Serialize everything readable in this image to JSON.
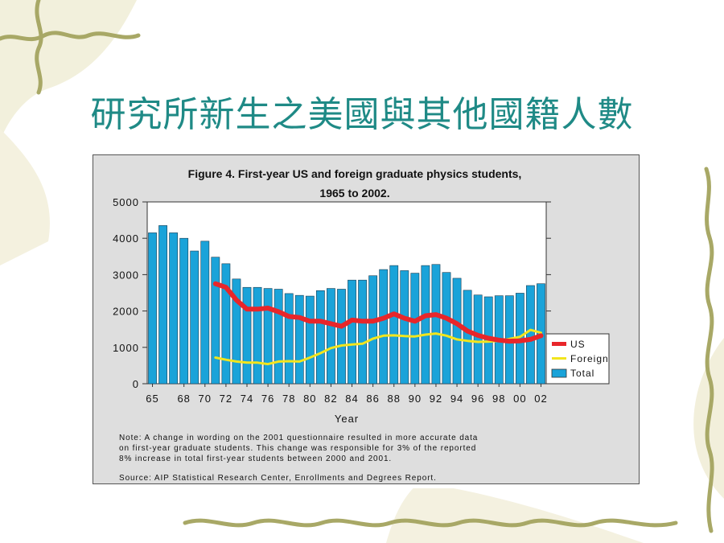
{
  "slide": {
    "title": "研究所新生之美國與其他國籍人數"
  },
  "chart_data": {
    "type": "bar",
    "title": "Figure 4.  First-year US and foreign graduate physics students,",
    "subtitle": "1965 to 2002.",
    "xlabel": "Year",
    "ylabel": "",
    "ylim": [
      0,
      5000
    ],
    "yticks": [
      "0",
      "1000",
      "2000",
      "3000",
      "4000",
      "5000"
    ],
    "xticks": [
      "65",
      "68",
      "70",
      "72",
      "74",
      "76",
      "78",
      "80",
      "82",
      "84",
      "86",
      "88",
      "90",
      "92",
      "94",
      "96",
      "98",
      "00",
      "02"
    ],
    "categories": [
      1965,
      1966,
      1967,
      1968,
      1969,
      1970,
      1971,
      1972,
      1973,
      1974,
      1975,
      1976,
      1977,
      1978,
      1979,
      1980,
      1981,
      1982,
      1983,
      1984,
      1985,
      1986,
      1987,
      1988,
      1989,
      1990,
      1991,
      1992,
      1993,
      1994,
      1995,
      1996,
      1997,
      1998,
      1999,
      2000,
      2001,
      2002
    ],
    "legend_position": "bottom-right",
    "grid": false,
    "series": [
      {
        "name": "Total",
        "type": "bar",
        "color": "#1aa3d9",
        "values": [
          4150,
          4350,
          4150,
          4000,
          3650,
          3920,
          3480,
          3300,
          2880,
          2650,
          2650,
          2620,
          2600,
          2480,
          2430,
          2410,
          2560,
          2620,
          2600,
          2850,
          2850,
          2970,
          3140,
          3250,
          3110,
          3040,
          3250,
          3280,
          3060,
          2900,
          2570,
          2440,
          2390,
          2420,
          2420,
          2490,
          2700,
          2750
        ]
      },
      {
        "name": "US",
        "type": "line",
        "color": "#e8262a",
        "x": [
          1971,
          1972,
          1973,
          1974,
          1975,
          1976,
          1977,
          1978,
          1979,
          1980,
          1981,
          1982,
          1983,
          1984,
          1985,
          1986,
          1987,
          1988,
          1989,
          1990,
          1991,
          1992,
          1993,
          1994,
          1995,
          1996,
          1997,
          1998,
          1999,
          2000,
          2001,
          2002
        ],
        "values": [
          2750,
          2650,
          2300,
          2050,
          2050,
          2080,
          1980,
          1850,
          1820,
          1720,
          1720,
          1650,
          1580,
          1750,
          1720,
          1720,
          1800,
          1920,
          1800,
          1720,
          1870,
          1900,
          1800,
          1650,
          1450,
          1330,
          1250,
          1200,
          1170,
          1180,
          1220,
          1320
        ]
      },
      {
        "name": "Foreign",
        "type": "line",
        "color": "#f2e51d",
        "x": [
          1971,
          1972,
          1973,
          1974,
          1975,
          1976,
          1977,
          1978,
          1979,
          1980,
          1981,
          1982,
          1983,
          1984,
          1985,
          1986,
          1987,
          1988,
          1989,
          1990,
          1991,
          1992,
          1993,
          1994,
          1995,
          1996,
          1997,
          1998,
          1999,
          2000,
          2001,
          2002
        ],
        "values": [
          720,
          660,
          610,
          580,
          580,
          540,
          610,
          620,
          610,
          720,
          840,
          980,
          1050,
          1080,
          1100,
          1240,
          1320,
          1330,
          1310,
          1300,
          1350,
          1380,
          1320,
          1220,
          1180,
          1150,
          1160,
          1180,
          1230,
          1290,
          1480,
          1400
        ]
      }
    ],
    "note": [
      "Note: A change in wording on the 2001 questionnaire resulted in more accurate data",
      "on first-year graduate students.  This change was responsible for 3% of the reported",
      "8% increase in total first-year students between 2000 and 2001."
    ],
    "source": "Source: AIP Statistical Research Center, Enrollments and Degrees Report."
  }
}
